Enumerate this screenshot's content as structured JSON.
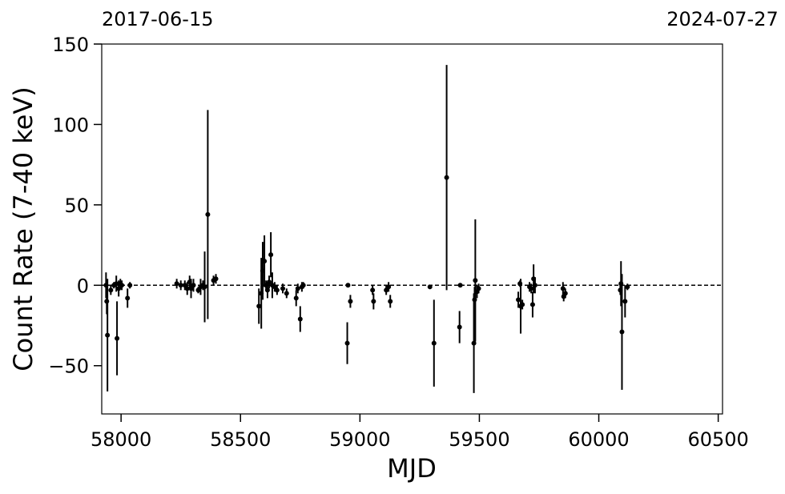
{
  "chart_data": {
    "type": "errorbar",
    "xlabel": "MJD",
    "ylabel": "Count Rate (7-40 keV)",
    "top_xticks": [
      {
        "value": 57919,
        "label": "2017-06-15"
      },
      {
        "value": 60518,
        "label": "2024-07-27"
      }
    ],
    "xlim": [
      57919,
      60518
    ],
    "ylim": [
      -80,
      150
    ],
    "xticks": [
      58000,
      58500,
      59000,
      59500,
      60000,
      60500
    ],
    "yticks": [
      {
        "value": -50,
        "label": "−50"
      },
      0,
      50,
      100,
      150
    ],
    "hline": 0,
    "series": [
      {
        "color": "#000000",
        "x": [
          57940,
          57943,
          57937,
          57957,
          57970,
          57980,
          57983,
          57990,
          57997,
          58003,
          58027,
          58037,
          58233,
          58250,
          58267,
          58277,
          58287,
          58293,
          58303,
          58323,
          58333,
          58343,
          58350,
          58363,
          58387,
          58397,
          58577,
          58587,
          58593,
          58600,
          58607,
          58613,
          58620,
          58627,
          58633,
          58643,
          58653,
          58677,
          58693,
          58733,
          58740,
          58750,
          58757,
          58763,
          58947,
          58950,
          58960,
          59053,
          59057,
          59110,
          59120,
          59127,
          59293,
          59310,
          59363,
          59417,
          59420,
          59477,
          59480,
          59483,
          59490,
          59497,
          59663,
          59670,
          59673,
          59680,
          59710,
          59717,
          59723,
          59727,
          59733,
          59850,
          59853,
          59860,
          60093,
          60097,
          60090,
          60110,
          60120
        ],
        "values": [
          -10,
          -31,
          0,
          -3,
          0,
          1,
          -33,
          -2,
          1,
          0,
          -8,
          0,
          1,
          0,
          0,
          -2,
          2,
          -2,
          0,
          -3,
          -1,
          0,
          -1,
          44,
          3,
          4,
          -13,
          -5,
          9,
          15,
          0,
          -3,
          2,
          19,
          0,
          -1,
          -3,
          -2,
          -5,
          -8,
          -2,
          -21,
          -1,
          0,
          -36,
          0,
          -10,
          -3,
          -10,
          -3,
          -1,
          -10,
          -1,
          -36,
          67,
          -26,
          0,
          -36,
          -9,
          3,
          -4,
          -2,
          -9,
          1,
          -13,
          -12,
          -1,
          -2,
          -12,
          4,
          0,
          -2,
          -7,
          -5,
          1,
          -29,
          -3,
          -10,
          -1
        ],
        "errors": [
          8,
          35,
          8,
          3,
          2,
          5,
          23,
          5,
          3,
          3,
          6,
          2,
          3,
          3,
          3,
          4,
          4,
          6,
          4,
          2,
          5,
          3,
          22,
          65,
          3,
          3,
          11,
          22,
          18,
          16,
          3,
          5,
          4,
          14,
          8,
          3,
          3,
          3,
          3,
          5,
          3,
          8,
          3,
          2,
          13,
          1,
          4,
          3,
          5,
          3,
          3,
          4,
          1,
          27,
          70,
          10,
          1,
          31,
          8,
          38,
          4,
          3,
          5,
          2,
          17,
          3,
          3,
          3,
          8,
          9,
          5,
          4,
          3,
          3,
          14,
          36,
          3,
          10,
          2
        ]
      }
    ]
  }
}
